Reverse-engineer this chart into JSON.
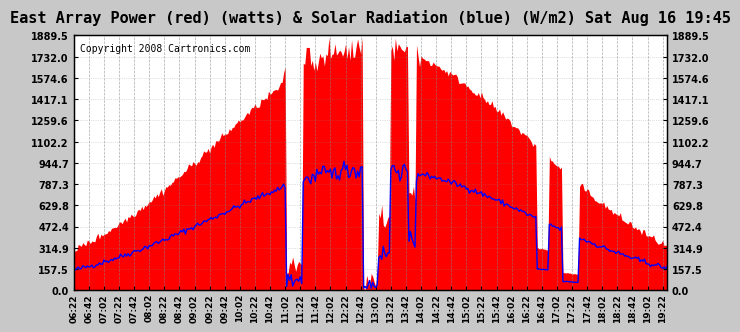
{
  "title": "East Array Power (red) (watts) & Solar Radiation (blue) (W/m2) Sat Aug 16 19:45",
  "copyright": "Copyright 2008 Cartronics.com",
  "ymax": 1889.5,
  "yticks": [
    0.0,
    157.5,
    314.9,
    472.4,
    629.8,
    787.3,
    944.7,
    1102.2,
    1259.6,
    1417.1,
    1574.6,
    1732.0,
    1889.5
  ],
  "bg_color": "#c8c8c8",
  "plot_bg": "#ffffff",
  "red_color": "#ff0000",
  "blue_color": "#0000ff",
  "title_fontsize": 11,
  "copyright_fontsize": 7,
  "tick_fontsize": 7,
  "xtick_fontsize": 6.5
}
